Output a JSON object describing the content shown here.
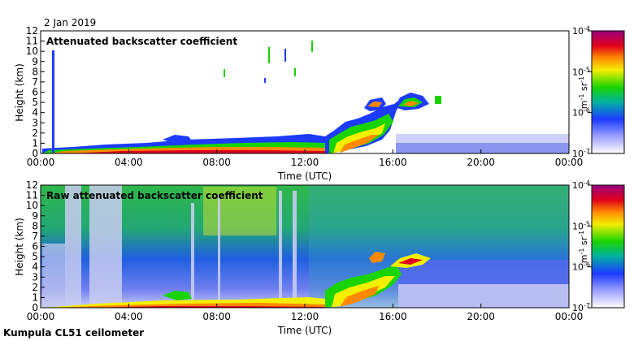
{
  "date_label": "2 Jan 2019",
  "footer_label": "Kumpula CL51 ceilometer",
  "colors": {
    "frame": "#000000",
    "colorbar": [
      "#9a0080",
      "#e0001c",
      "#ff8a00",
      "#f3ef00",
      "#19d400",
      "#00b3a0",
      "#1c3bff",
      "#ffffff"
    ]
  },
  "chart_data": [
    {
      "type": "heatmap",
      "title": "Attenuated backscatter coefficient",
      "xlabel": "Time (UTC)",
      "ylabel": "Height (km)",
      "x_ticks": [
        "00:00",
        "04:00",
        "08:00",
        "12:00",
        "16:00",
        "20:00",
        "00:00"
      ],
      "y_ticks": [
        "0",
        "1",
        "2",
        "3",
        "4",
        "5",
        "6",
        "7",
        "8",
        "9",
        "10",
        "11",
        "12"
      ],
      "xlim_hours": [
        0,
        24
      ],
      "ylim_km": [
        0,
        12
      ],
      "colorbar": {
        "scale": "log",
        "min": "10^-7",
        "max": "10^-4",
        "ticks": [
          {
            "base": "10",
            "exp": "-4"
          },
          {
            "base": "10",
            "exp": "-5"
          },
          {
            "base": "10",
            "exp": "-6"
          },
          {
            "base": "10",
            "exp": "-7"
          }
        ],
        "unit": "m⁻¹ sr⁻¹"
      }
    },
    {
      "type": "heatmap",
      "title": "Raw attenuated backscatter coefficient",
      "xlabel": "Time (UTC)",
      "ylabel": "Height (km)",
      "x_ticks": [
        "00:00",
        "04:00",
        "08:00",
        "12:00",
        "16:00",
        "20:00",
        "00:00"
      ],
      "y_ticks": [
        "0",
        "1",
        "2",
        "3",
        "4",
        "5",
        "6",
        "7",
        "8",
        "9",
        "10",
        "11",
        "12"
      ],
      "xlim_hours": [
        0,
        24
      ],
      "ylim_km": [
        0,
        12
      ],
      "colorbar": {
        "scale": "log",
        "min": "10^-7",
        "max": "10^-4",
        "ticks": [
          {
            "base": "10",
            "exp": "-4"
          },
          {
            "base": "10",
            "exp": "-5"
          },
          {
            "base": "10",
            "exp": "-6"
          },
          {
            "base": "10",
            "exp": "-7"
          }
        ],
        "unit": "m⁻¹ sr⁻¹"
      }
    }
  ]
}
